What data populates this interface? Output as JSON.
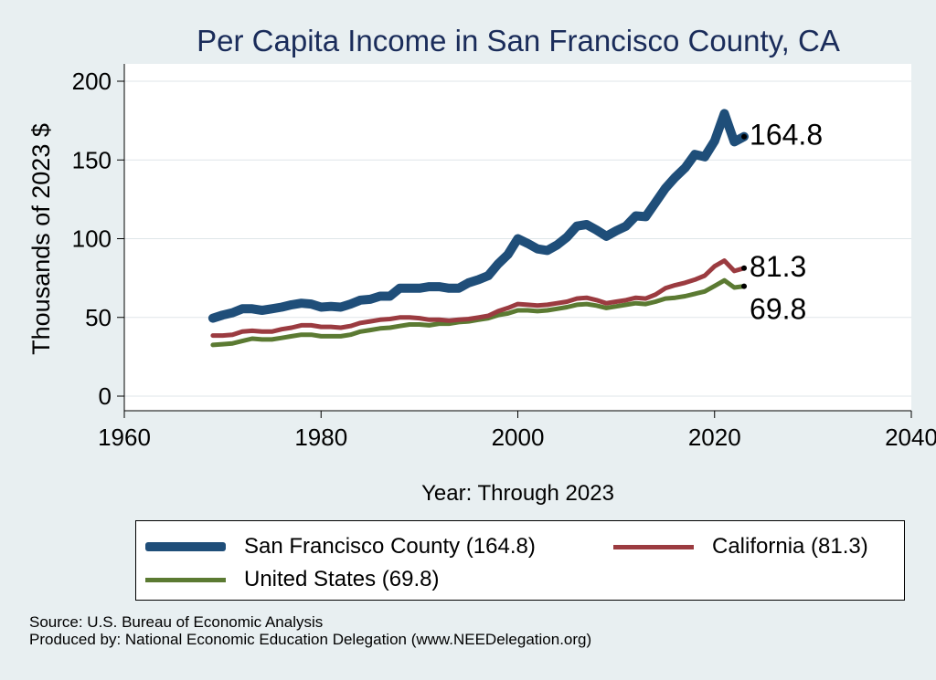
{
  "chart_data": {
    "type": "line",
    "title": "Per Capita Income in San Francisco County, CA",
    "xlabel": "Year: Through 2023",
    "ylabel": "Thousands of 2023 $",
    "xlim": [
      1960,
      2040
    ],
    "ylim": [
      0,
      200
    ],
    "xticks": [
      1960,
      1980,
      2000,
      2020,
      2040
    ],
    "yticks": [
      0,
      50,
      100,
      150,
      200
    ],
    "grid": true,
    "legend_position": "bottom",
    "series": [
      {
        "name": "San Francisco County (164.8)",
        "color": "#1f4e79",
        "end_label": "164.8",
        "x": [
          1969,
          1970,
          1971,
          1972,
          1973,
          1974,
          1975,
          1976,
          1977,
          1978,
          1979,
          1980,
          1981,
          1982,
          1983,
          1984,
          1985,
          1986,
          1987,
          1988,
          1989,
          1990,
          1991,
          1992,
          1993,
          1994,
          1995,
          1996,
          1997,
          1998,
          1999,
          2000,
          2001,
          2002,
          2003,
          2004,
          2005,
          2006,
          2007,
          2008,
          2009,
          2010,
          2011,
          2012,
          2013,
          2014,
          2015,
          2016,
          2017,
          2018,
          2019,
          2020,
          2021,
          2022,
          2023
        ],
        "values": [
          49.5,
          51.5,
          53,
          55.5,
          55.5,
          54.5,
          55.5,
          56.5,
          58,
          59,
          58.5,
          56.5,
          57,
          56.5,
          58.5,
          61,
          61.5,
          63.5,
          63.5,
          68.5,
          68.5,
          68.5,
          69.5,
          69.5,
          68.5,
          68.5,
          72,
          74,
          76.5,
          84,
          90,
          100,
          97,
          93.5,
          92.5,
          96,
          101,
          108,
          109,
          105.5,
          101.5,
          105,
          108,
          114.5,
          114,
          123,
          132,
          139,
          145,
          153.5,
          152,
          162,
          179.5,
          161.5,
          164.8
        ]
      },
      {
        "name": "California (81.3)",
        "color": "#9b3b40",
        "end_label": "81.3",
        "x": [
          1969,
          1970,
          1971,
          1972,
          1973,
          1974,
          1975,
          1976,
          1977,
          1978,
          1979,
          1980,
          1981,
          1982,
          1983,
          1984,
          1985,
          1986,
          1987,
          1988,
          1989,
          1990,
          1991,
          1992,
          1993,
          1994,
          1995,
          1996,
          1997,
          1998,
          1999,
          2000,
          2001,
          2002,
          2003,
          2004,
          2005,
          2006,
          2007,
          2008,
          2009,
          2010,
          2011,
          2012,
          2013,
          2014,
          2015,
          2016,
          2017,
          2018,
          2019,
          2020,
          2021,
          2022,
          2023
        ],
        "values": [
          38.5,
          38.5,
          39,
          41,
          41.5,
          41,
          41,
          42.5,
          43.5,
          45,
          45,
          44,
          44,
          43.5,
          44.5,
          46.5,
          47.5,
          48.5,
          49,
          50,
          50,
          49.5,
          48.5,
          48.5,
          48,
          48.5,
          49,
          50,
          51,
          54,
          56,
          58.5,
          58,
          57.5,
          58,
          59,
          60,
          62,
          62.5,
          61,
          59,
          60,
          61,
          62.5,
          62,
          64.5,
          68.5,
          70.5,
          72,
          74,
          76.5,
          82.5,
          86,
          79.5,
          81.3
        ]
      },
      {
        "name": "United States (69.8)",
        "color": "#5b7a32",
        "end_label": "69.8",
        "x": [
          1969,
          1970,
          1971,
          1972,
          1973,
          1974,
          1975,
          1976,
          1977,
          1978,
          1979,
          1980,
          1981,
          1982,
          1983,
          1984,
          1985,
          1986,
          1987,
          1988,
          1989,
          1990,
          1991,
          1992,
          1993,
          1994,
          1995,
          1996,
          1997,
          1998,
          1999,
          2000,
          2001,
          2002,
          2003,
          2004,
          2005,
          2006,
          2007,
          2008,
          2009,
          2010,
          2011,
          2012,
          2013,
          2014,
          2015,
          2016,
          2017,
          2018,
          2019,
          2020,
          2021,
          2022,
          2023
        ],
        "values": [
          32.5,
          33,
          33.5,
          35,
          36.5,
          36,
          36,
          37,
          38,
          39,
          39,
          38,
          38,
          38,
          39,
          41,
          42,
          43,
          43.5,
          44.5,
          45.5,
          45.5,
          45,
          46,
          46,
          47,
          47.5,
          48.5,
          49.5,
          51.5,
          52.5,
          54.5,
          54.5,
          54,
          54.5,
          55.5,
          56.5,
          58,
          58.5,
          57.5,
          56,
          57,
          58,
          59,
          58.5,
          60,
          62,
          62.5,
          63.5,
          65,
          66.5,
          70,
          73.5,
          69,
          69.8
        ]
      }
    ]
  },
  "legend": {
    "items": [
      {
        "label": "San Francisco County (164.8)",
        "color": "#1f4e79"
      },
      {
        "label": "California (81.3)",
        "color": "#9b3b40"
      },
      {
        "label": "United States (69.8)",
        "color": "#5b7a32"
      }
    ]
  },
  "footer": {
    "source": "Source: U.S. Bureau of Economic Analysis",
    "produced_by": "Produced by: National Economic Education Delegation (www.NEEDelegation.org)"
  }
}
